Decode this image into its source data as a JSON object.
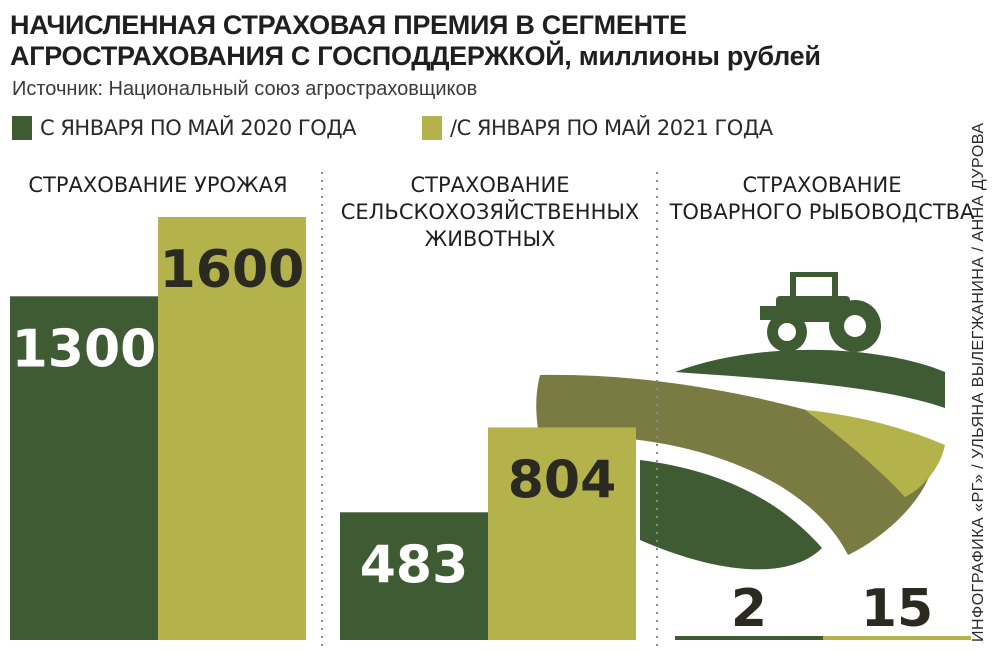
{
  "header": {
    "title_line1": "НАЧИСЛЕННАЯ СТРАХОВАЯ ПРЕМИЯ В СЕГМЕНТЕ",
    "title_line2": "АГРОСТРАХОВАНИЯ С ГОСПОДДЕРЖКОЙ,",
    "title_unit": "миллионы рублей",
    "source": "Источник:  Национальный союз агростраховщиков"
  },
  "credit": "ИНФОГРАФИКА «РГ» / УЛЬЯНА ВЫЛЕГЖАНИНА / АННА ДУРОВА",
  "colors": {
    "series_2020": "#3f5b34",
    "series_2021": "#b4b34b",
    "field_mid": "#7a7a43",
    "divider": "#8a8a8a"
  },
  "icons": [
    "tractor-icon",
    "field-illustration"
  ],
  "chart_data": {
    "type": "bar",
    "categories": [
      [
        "СТРАХОВАНИЕ УРОЖАЯ"
      ],
      [
        "СТРАХОВАНИЕ",
        "СЕЛЬСКОХОЗЯЙСТВЕННЫХ",
        "ЖИВОТНЫХ"
      ],
      [
        "СТРАХОВАНИЕ",
        "ТОВАРНОГО РЫБОВОДСТВА"
      ]
    ],
    "series": [
      {
        "name": "С ЯНВАРЯ ПО МАЙ 2020 ГОДА",
        "values": [
          1300,
          483,
          2
        ],
        "labels": [
          "1300",
          "483",
          "2"
        ]
      },
      {
        "name": "/С ЯНВАРЯ ПО МАЙ 2021 ГОДА",
        "values": [
          1600,
          804,
          15
        ],
        "labels": [
          "1600",
          "804",
          "15"
        ]
      }
    ],
    "ylim": [
      0,
      1600
    ],
    "grid": false,
    "legend": "top-left"
  }
}
